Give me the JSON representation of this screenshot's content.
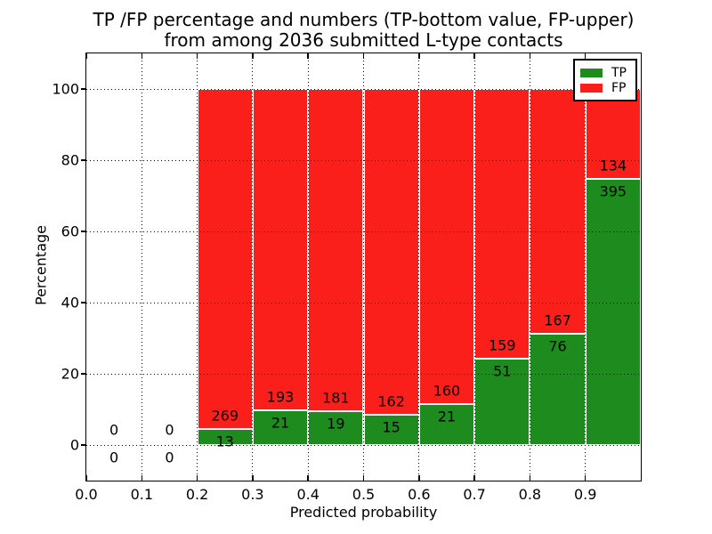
{
  "figure": {
    "title_line1": "TP /FP percentage and numbers (TP-bottom value, FP-upper)",
    "title_line2": "from among 2036 submitted L-type contacts",
    "xlabel": "Predicted probability",
    "ylabel": "Percentage"
  },
  "legend": {
    "position": "upper right",
    "items": [
      {
        "label": "TP",
        "color": "#1e8b1e"
      },
      {
        "label": "FP",
        "color": "#fb1f1b"
      }
    ]
  },
  "chart_data": {
    "type": "bar",
    "stacked": true,
    "normalized_to_percent": true,
    "title": "TP /FP percentage and numbers (TP-bottom value, FP-upper) from among 2036 submitted L-type contacts",
    "xlabel": "Predicted probability",
    "ylabel": "Percentage",
    "total_contacts": 2036,
    "bin_start": [
      0.0,
      0.1,
      0.2,
      0.3,
      0.4,
      0.5,
      0.6,
      0.7,
      0.8,
      0.9
    ],
    "bin_width": 0.1,
    "series": [
      {
        "name": "TP",
        "color": "#1e8b1e",
        "counts": [
          0,
          0,
          13,
          21,
          19,
          15,
          21,
          51,
          76,
          395
        ]
      },
      {
        "name": "FP",
        "color": "#fb1f1b",
        "counts": [
          0,
          0,
          269,
          193,
          181,
          162,
          160,
          159,
          167,
          134
        ]
      }
    ],
    "xlim": [
      0.0,
      1.0
    ],
    "ylim": [
      -10,
      110
    ],
    "xtick_values": [
      0.0,
      0.1,
      0.2,
      0.3,
      0.4,
      0.5,
      0.6,
      0.7,
      0.8,
      0.9
    ],
    "xtick_labels": [
      "0.0",
      "0.1",
      "0.2",
      "0.3",
      "0.4",
      "0.5",
      "0.6",
      "0.7",
      "0.8",
      "0.9"
    ],
    "ytick_values": [
      0,
      20,
      40,
      60,
      80,
      100
    ],
    "ytick_labels": [
      "0",
      "20",
      "40",
      "60",
      "80",
      "100"
    ],
    "grid": {
      "on": true,
      "style": "dotted",
      "color": "#000000"
    },
    "legend_position": "upper right"
  }
}
